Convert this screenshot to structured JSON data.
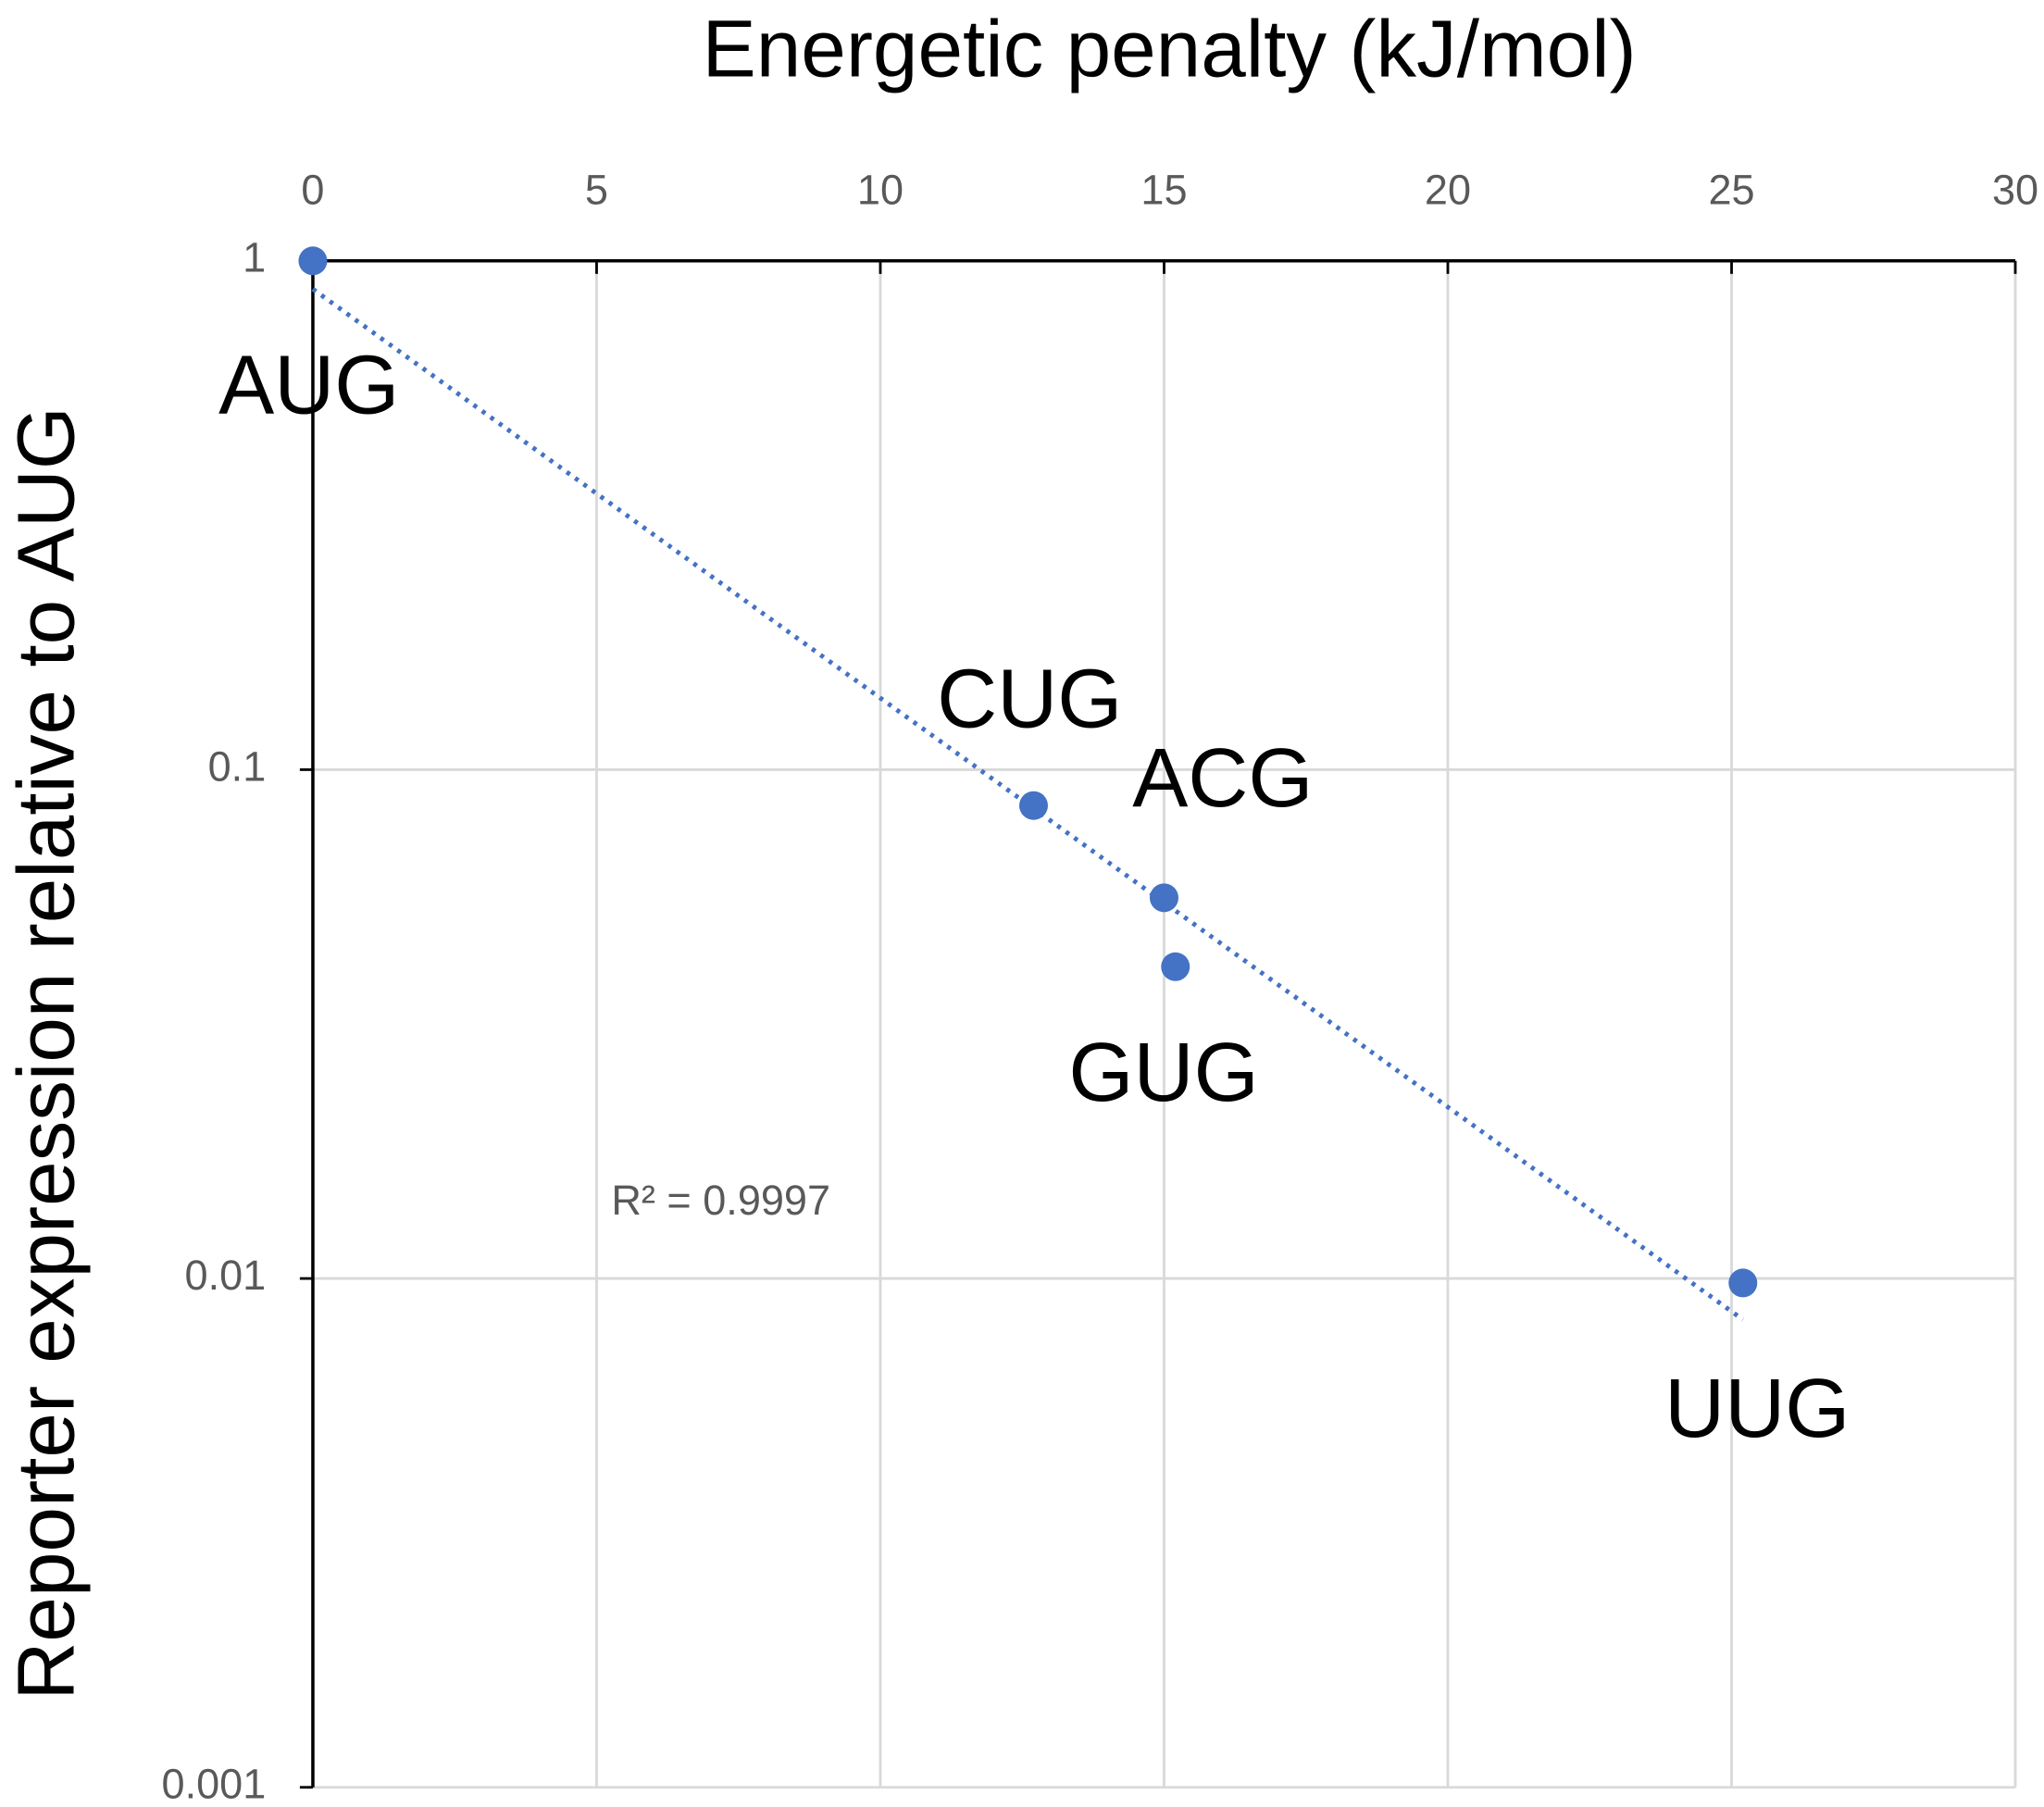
{
  "chart_data": {
    "type": "scatter",
    "x_label": "Energetic penalty (kJ/mol)",
    "y_label": "Reporter expression relative to AUG",
    "series": [
      {
        "color": "#4472c4",
        "x": [
          0,
          12.7,
          15.0,
          15.2,
          25.2
        ],
        "values": [
          1,
          0.085,
          0.056,
          0.041,
          0.0098
        ],
        "labels": [
          "AUG",
          "CUG",
          "ACG",
          "GUG",
          "UUG"
        ]
      }
    ],
    "trendline": {
      "color": "#4472c4",
      "style": "dotted",
      "x": [
        0,
        25.2
      ],
      "values": [
        0.88,
        0.0083
      ],
      "annotation": "R² = 0.9997"
    },
    "xlim": [
      0,
      30
    ],
    "xticks": [
      0,
      5,
      10,
      15,
      20,
      25,
      30
    ],
    "ylim": [
      0.001,
      1
    ],
    "yticks": [
      0.001,
      0.01,
      0.1,
      1
    ],
    "y_scale": "log",
    "x_axis_position": "top",
    "grid": true
  }
}
